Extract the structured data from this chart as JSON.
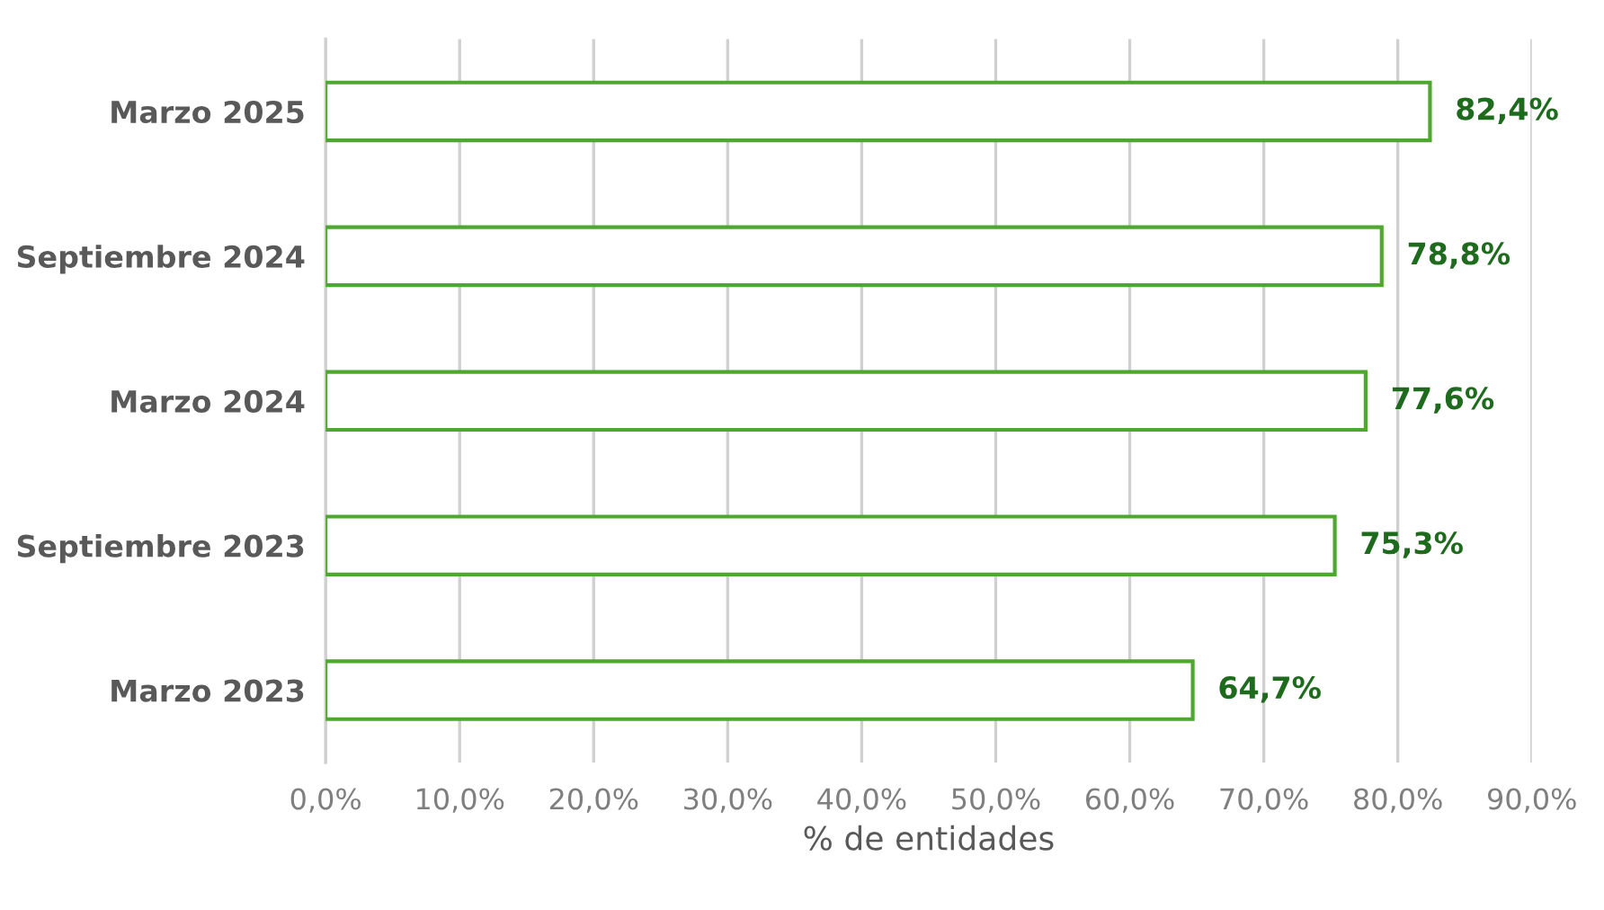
{
  "chart_data": {
    "type": "bar",
    "orientation": "horizontal",
    "xlabel": "% de entidades",
    "categories": [
      "Marzo 2025",
      "Septiembre 2024",
      "Marzo 2024",
      "Septiembre 2023",
      "Marzo 2023"
    ],
    "values": [
      82.4,
      78.8,
      77.6,
      75.3,
      64.7
    ],
    "value_labels": [
      "82,4%",
      "78,8%",
      "77,6%",
      "75,3%",
      "64,7%"
    ],
    "color": "#4ea72e",
    "xlim": [
      0,
      90
    ],
    "xticks": [
      {
        "value": 0,
        "label": "0,0%"
      },
      {
        "value": 10,
        "label": "10,0%"
      },
      {
        "value": 20,
        "label": "20,0%"
      },
      {
        "value": 30,
        "label": "30,0%"
      },
      {
        "value": 40,
        "label": "40,0%"
      },
      {
        "value": 50,
        "label": "50,0%"
      },
      {
        "value": 60,
        "label": "60,0%"
      },
      {
        "value": 70,
        "label": "70,0%"
      },
      {
        "value": 80,
        "label": "80,0%"
      },
      {
        "value": 90,
        "label": "90,0%"
      }
    ],
    "grid": "x",
    "legend": false
  }
}
